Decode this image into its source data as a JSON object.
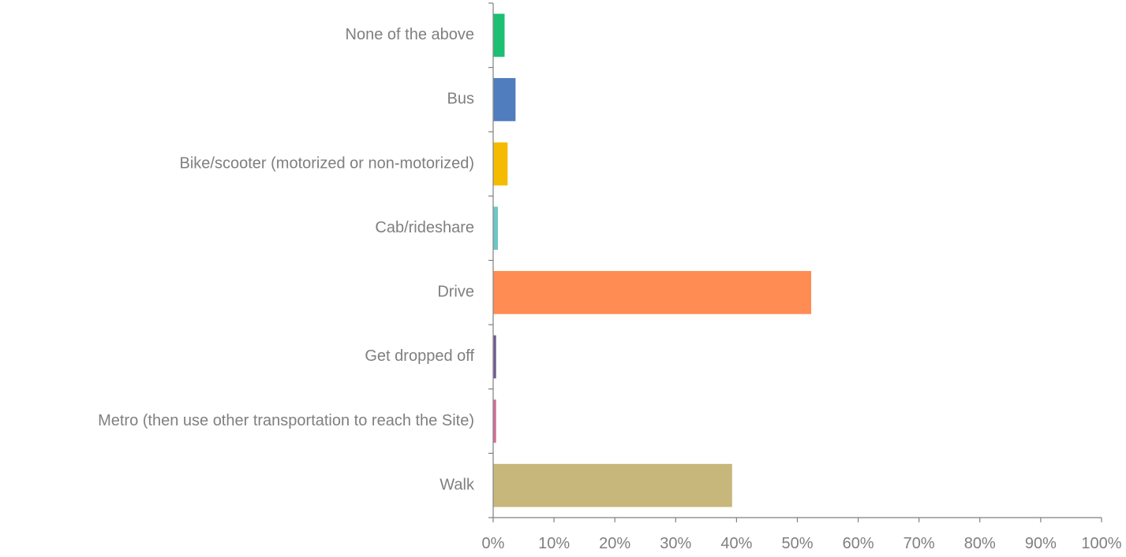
{
  "chart_data": {
    "type": "bar",
    "orientation": "horizontal",
    "title": "",
    "xlabel": "",
    "ylabel": "",
    "categories": [
      "None of the above",
      "Bus",
      "Bike/scooter (motorized or non-motorized)",
      "Cab/rideshare",
      "Drive",
      "Get dropped off",
      "Metro (then use other transportation to reach the Site)",
      "Walk"
    ],
    "values": [
      1.8,
      3.6,
      2.3,
      0.7,
      52.2,
      0.4,
      0.4,
      39.2
    ],
    "colors": [
      "#1dbf73",
      "#4f7dbd",
      "#f5bb00",
      "#6fc6c7",
      "#ff8c52",
      "#6d5a8f",
      "#d56a97",
      "#c8b77a"
    ],
    "xlim": [
      0,
      100
    ],
    "ticks": [
      "0%",
      "10%",
      "20%",
      "30%",
      "40%",
      "50%",
      "60%",
      "70%",
      "80%",
      "90%",
      "100%"
    ],
    "grid": false,
    "legend": "none"
  }
}
